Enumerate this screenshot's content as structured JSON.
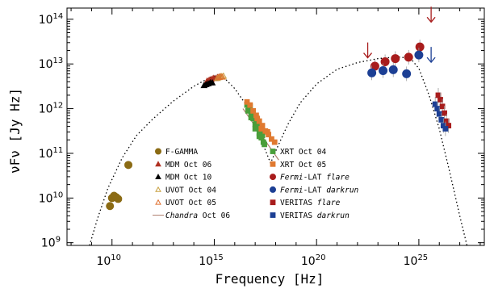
{
  "chart_data": {
    "type": "scatter",
    "xscale": "log",
    "yscale": "log",
    "xlabel": "Frequency [Hz]",
    "ylabel": "νFν [Jy Hz]",
    "xlim_log10": [
      7.8,
      28.2
    ],
    "ylim_log10": [
      8.94,
      14.25
    ],
    "x_ticks": [
      {
        "base": "10",
        "exp": "10",
        "log": 10
      },
      {
        "base": "10",
        "exp": "15",
        "log": 15
      },
      {
        "base": "10",
        "exp": "20",
        "log": 20
      },
      {
        "base": "10",
        "exp": "25",
        "log": 25
      }
    ],
    "y_ticks": [
      {
        "base": "10",
        "exp": "9",
        "log": 9
      },
      {
        "base": "10",
        "exp": "10",
        "log": 10
      },
      {
        "base": "10",
        "exp": "11",
        "log": 11
      },
      {
        "base": "10",
        "exp": "12",
        "log": 12
      },
      {
        "base": "10",
        "exp": "13",
        "log": 13
      },
      {
        "base": "10",
        "exp": "14",
        "log": 14
      }
    ],
    "model_curve_log10": [
      [
        8.9,
        8.94
      ],
      [
        9.3,
        9.55
      ],
      [
        9.8,
        10.22
      ],
      [
        10.5,
        10.9
      ],
      [
        11.2,
        11.4
      ],
      [
        12,
        11.77
      ],
      [
        13,
        12.17
      ],
      [
        14,
        12.5
      ],
      [
        14.8,
        12.7
      ],
      [
        15.2,
        12.76
      ],
      [
        15.5,
        12.68
      ],
      [
        16,
        12.45
      ],
      [
        16.5,
        12.12
      ],
      [
        17,
        11.65
      ],
      [
        17.4,
        11.18
      ],
      [
        17.75,
        10.78
      ],
      [
        18.1,
        11.15
      ],
      [
        18.6,
        11.65
      ],
      [
        19.2,
        12.13
      ],
      [
        20,
        12.55
      ],
      [
        21,
        12.88
      ],
      [
        22,
        13.03
      ],
      [
        23,
        13.12
      ],
      [
        24,
        13.16
      ],
      [
        24.6,
        13.12
      ],
      [
        25,
        12.9
      ],
      [
        25.5,
        12.3
      ],
      [
        26,
        11.55
      ],
      [
        26.5,
        10.6
      ],
      [
        27,
        9.6
      ],
      [
        27.35,
        8.94
      ]
    ],
    "series": [
      {
        "name": "F-GAMMA",
        "marker": "circle",
        "color": "#8b6b14",
        "filled": true,
        "points": [
          [
            9.9,
            9.82
          ],
          [
            10.0,
            10.0
          ],
          [
            10.1,
            10.05
          ],
          [
            10.2,
            10.02
          ],
          [
            10.3,
            9.98
          ],
          [
            10.8,
            10.74
          ]
        ]
      },
      {
        "name": "MDM Oct 06",
        "marker": "triangle",
        "color": "#b03020",
        "filled": true,
        "points": [
          [
            14.65,
            12.62
          ],
          [
            14.75,
            12.64
          ],
          [
            14.85,
            12.66
          ],
          [
            14.95,
            12.68
          ],
          [
            15.05,
            12.68
          ],
          [
            15.15,
            12.7
          ],
          [
            15.25,
            12.71
          ]
        ]
      },
      {
        "name": "MDM Oct 10",
        "marker": "triangle",
        "color": "#000000",
        "filled": true,
        "points": [
          [
            14.5,
            12.52
          ],
          [
            14.6,
            12.54
          ],
          [
            14.7,
            12.56
          ],
          [
            14.8,
            12.58
          ],
          [
            14.9,
            12.58
          ]
        ]
      },
      {
        "name": "UVOT Oct 04",
        "marker": "triangle",
        "color": "#c8a040",
        "filled": false,
        "points": [
          [
            15.15,
            12.68
          ],
          [
            15.25,
            12.7
          ],
          [
            15.35,
            12.72
          ],
          [
            15.45,
            12.73
          ]
        ]
      },
      {
        "name": "UVOT Oct 05",
        "marker": "triangle",
        "color": "#e07030",
        "filled": false,
        "points": [
          [
            15.2,
            12.7
          ],
          [
            15.3,
            12.72
          ],
          [
            15.4,
            12.71
          ]
        ]
      },
      {
        "name": "Chandra Oct 06",
        "marker": "line",
        "color": "#b08070",
        "points": [
          [
            16.4,
            12.0
          ],
          [
            18.15,
            10.85
          ]
        ]
      },
      {
        "name": "XRT Oct 04",
        "marker": "square",
        "color": "#4a9e3a",
        "filled": true,
        "points": [
          [
            16.6,
            12.08
          ],
          [
            16.7,
            11.98
          ],
          [
            16.8,
            11.88
          ],
          [
            16.9,
            11.78
          ],
          [
            17.0,
            11.65
          ],
          [
            17.1,
            11.58
          ],
          [
            17.2,
            11.45
          ],
          [
            17.3,
            11.35
          ],
          [
            17.4,
            11.25
          ],
          [
            16.75,
            12.05
          ],
          [
            16.85,
            11.93
          ],
          [
            16.95,
            11.82
          ],
          [
            17.05,
            11.72
          ],
          [
            17.15,
            11.6
          ],
          [
            17.25,
            11.5
          ],
          [
            17.35,
            11.4
          ],
          [
            16.65,
            11.95
          ],
          [
            16.8,
            11.8
          ],
          [
            17.0,
            11.55
          ],
          [
            17.2,
            11.38
          ],
          [
            17.45,
            11.2
          ]
        ]
      },
      {
        "name": "XRT Oct 05",
        "marker": "square",
        "color": "#e07a30",
        "filled": true,
        "points": [
          [
            16.6,
            12.15
          ],
          [
            16.75,
            12.08
          ],
          [
            16.9,
            11.95
          ],
          [
            17.05,
            11.85
          ],
          [
            17.2,
            11.72
          ],
          [
            17.35,
            11.62
          ],
          [
            17.5,
            11.5
          ],
          [
            17.65,
            11.42
          ],
          [
            17.8,
            11.32
          ],
          [
            17.95,
            11.25
          ],
          [
            17.1,
            11.78
          ],
          [
            17.3,
            11.55
          ],
          [
            17.6,
            11.48
          ]
        ]
      },
      {
        "name": "Fermi-LAT flare",
        "marker": "circle",
        "color": "#a81c1c",
        "filled": true,
        "points": [
          [
            22.85,
            12.95
          ],
          [
            23.35,
            13.05
          ],
          [
            23.85,
            13.12
          ],
          [
            24.5,
            13.15
          ],
          [
            25.05,
            13.38
          ]
        ]
      },
      {
        "name": "Fermi-LAT darkrun",
        "marker": "circle",
        "color": "#1c3f94",
        "filled": true,
        "points": [
          [
            22.7,
            12.8
          ],
          [
            23.25,
            12.85
          ],
          [
            23.75,
            12.87
          ],
          [
            24.4,
            12.78
          ],
          [
            25.0,
            13.2
          ]
        ]
      },
      {
        "name": "VERITAS flare",
        "marker": "square",
        "color": "#a81c1c",
        "filled": true,
        "points": [
          [
            25.95,
            12.3
          ],
          [
            26.05,
            12.2
          ],
          [
            26.15,
            12.05
          ],
          [
            26.25,
            11.9
          ],
          [
            26.35,
            11.72
          ],
          [
            26.45,
            11.62
          ]
        ]
      },
      {
        "name": "VERITAS darkrun",
        "marker": "square",
        "color": "#1c3f94",
        "filled": true,
        "points": [
          [
            25.8,
            12.1
          ],
          [
            25.9,
            12.0
          ],
          [
            26.0,
            11.88
          ],
          [
            26.1,
            11.75
          ],
          [
            26.2,
            11.62
          ],
          [
            26.3,
            11.55
          ]
        ]
      }
    ],
    "upper_limits": [
      {
        "series": "Fermi-LAT flare",
        "color": "#a81c1c",
        "x": 22.5,
        "y": 13.3
      },
      {
        "series": "Fermi-LAT flare",
        "color": "#a81c1c",
        "x": 25.6,
        "y": 14.1
      },
      {
        "series": "Fermi-LAT darkrun",
        "color": "#1c3f94",
        "x": 25.6,
        "y": 13.2
      }
    ],
    "legend": {
      "placement": "center",
      "columns": [
        [
          {
            "label": "F-GAMMA"
          },
          {
            "label": "MDM Oct 06"
          },
          {
            "label": "MDM Oct 10"
          },
          {
            "label": "UVOT Oct 04"
          },
          {
            "label": "UVOT Oct 05"
          },
          {
            "label": "Chandra Oct 06",
            "em": "Chandra",
            "rest": " Oct 06"
          }
        ],
        [
          {
            "label": "XRT Oct 04"
          },
          {
            "label": "XRT Oct 05"
          },
          {
            "label": "Fermi-LAT flare",
            "pre": "Fermi",
            "mid": "-LAT ",
            "post": "flare"
          },
          {
            "label": "Fermi-LAT darkrun",
            "pre": "Fermi",
            "mid": "-LAT ",
            "post": "darkrun"
          },
          {
            "label": "VERITAS flare",
            "mid": "VERITAS ",
            "post": "flare"
          },
          {
            "label": "VERITAS darkrun",
            "mid": "VERITAS ",
            "post": "darkrun"
          }
        ]
      ]
    }
  }
}
